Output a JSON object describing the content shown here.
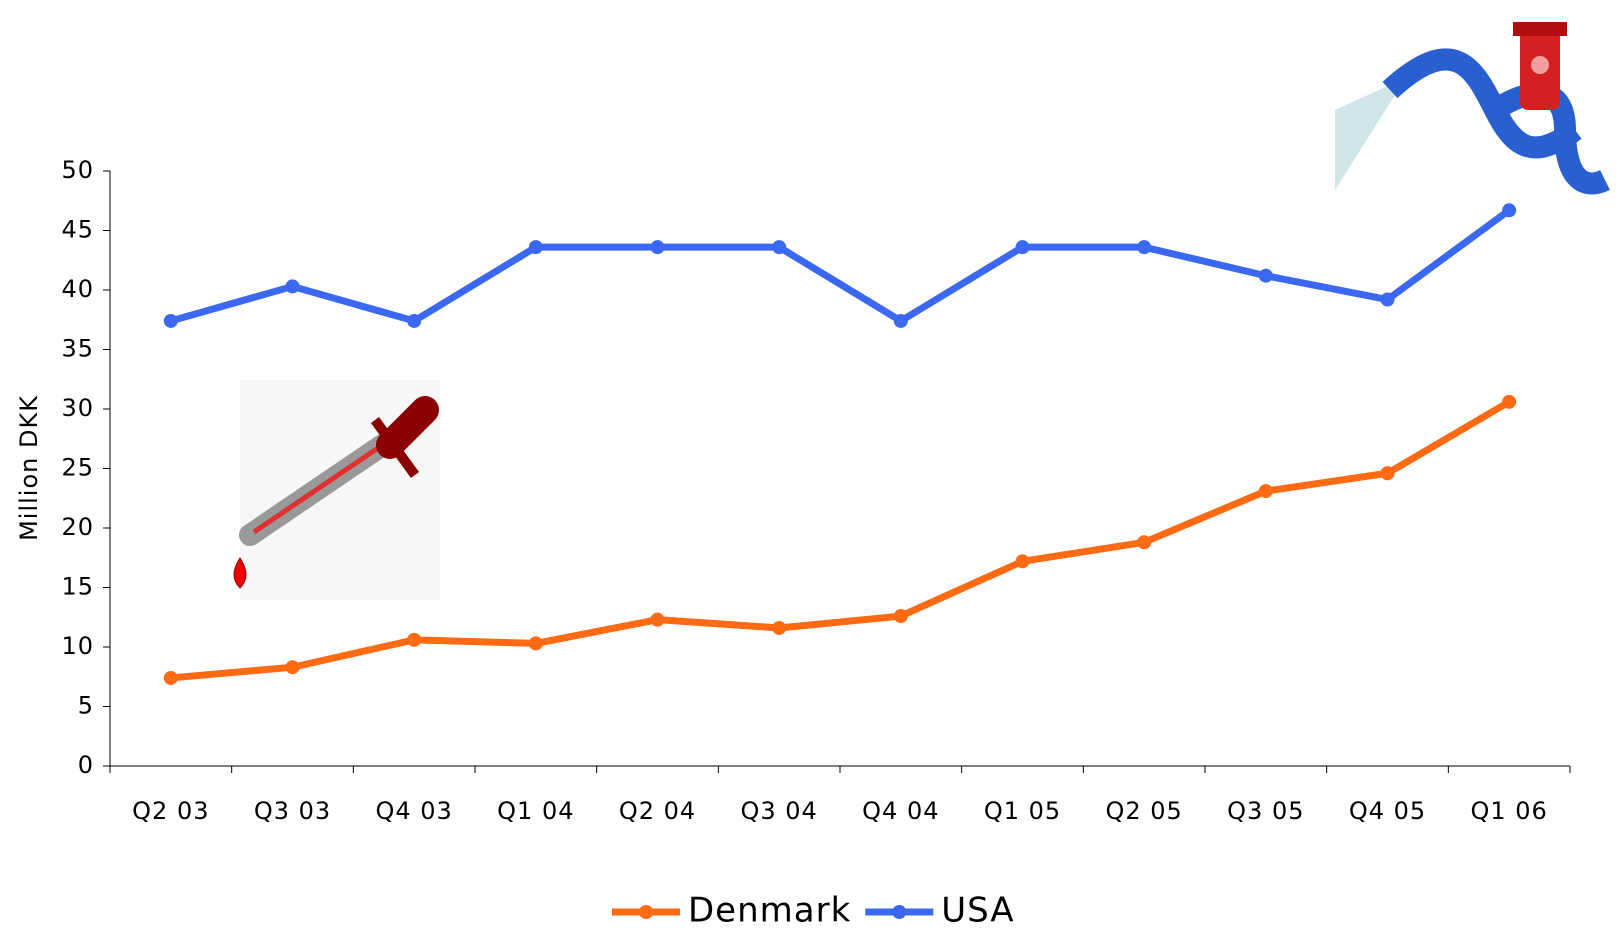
{
  "chart_data": {
    "type": "line",
    "y_label": "Million DKK",
    "categories": [
      "Q2 03",
      "Q3 03",
      "Q4 03",
      "Q1 04",
      "Q2 04",
      "Q3 04",
      "Q4 04",
      "Q1 05",
      "Q2 05",
      "Q3 05",
      "Q4 05",
      "Q1 06"
    ],
    "series": [
      {
        "name": "Denmark",
        "color": "#ff6a13",
        "values": [
          7.4,
          8.3,
          10.6,
          10.3,
          12.3,
          11.6,
          12.6,
          17.2,
          18.8,
          23.1,
          24.6,
          30.6
        ]
      },
      {
        "name": "USA",
        "color": "#3a68f0",
        "values": [
          37.4,
          40.3,
          37.4,
          43.6,
          43.6,
          43.6,
          37.4,
          43.6,
          43.6,
          41.2,
          39.2,
          46.7
        ]
      }
    ],
    "ylim": [
      0,
      50
    ],
    "yticks": [
      0,
      5,
      10,
      15,
      20,
      25,
      30,
      35,
      40,
      45,
      50
    ],
    "legend": "bottom"
  }
}
